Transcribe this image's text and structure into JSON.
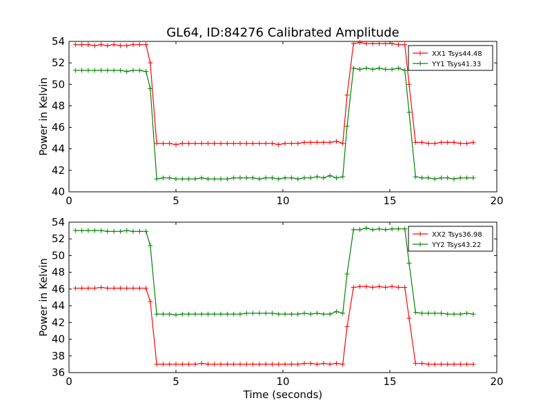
{
  "title": "GL64, ID:84276 Calibrated Amplitude",
  "chart_data": [
    {
      "type": "line",
      "ylabel": "Power in Kelvin",
      "xlabel": "",
      "xlim": [
        0,
        20
      ],
      "ylim": [
        40,
        54
      ],
      "xticks": [
        "0",
        "5",
        "10",
        "15",
        "20"
      ],
      "yticks": [
        "40",
        "42",
        "44",
        "46",
        "48",
        "50",
        "52",
        "54"
      ],
      "legend_position": "top-right",
      "grid": false,
      "x": [
        0.3,
        0.6,
        0.9,
        1.2,
        1.5,
        1.8,
        2.1,
        2.4,
        2.7,
        3.0,
        3.3,
        3.6,
        3.8,
        4.1,
        4.4,
        4.7,
        5.0,
        5.3,
        5.6,
        5.9,
        6.2,
        6.5,
        6.8,
        7.1,
        7.4,
        7.7,
        8.0,
        8.3,
        8.6,
        8.9,
        9.2,
        9.5,
        9.8,
        10.1,
        10.4,
        10.7,
        11.0,
        11.3,
        11.6,
        11.9,
        12.2,
        12.5,
        12.8,
        13.0,
        13.3,
        13.6,
        13.9,
        14.2,
        14.5,
        14.8,
        15.1,
        15.4,
        15.7,
        15.9,
        16.2,
        16.5,
        16.8,
        17.1,
        17.4,
        17.7,
        18.0,
        18.3,
        18.6,
        18.9
      ],
      "series": [
        {
          "name": "XX1 Tsys44.48",
          "color": "#ff0000",
          "values": [
            53.7,
            53.7,
            53.7,
            53.6,
            53.7,
            53.6,
            53.7,
            53.6,
            53.6,
            53.7,
            53.7,
            53.7,
            52.0,
            44.5,
            44.5,
            44.5,
            44.4,
            44.5,
            44.5,
            44.5,
            44.5,
            44.5,
            44.5,
            44.5,
            44.5,
            44.5,
            44.5,
            44.5,
            44.5,
            44.5,
            44.5,
            44.5,
            44.4,
            44.5,
            44.5,
            44.5,
            44.6,
            44.6,
            44.6,
            44.6,
            44.6,
            44.7,
            44.5,
            49.0,
            53.8,
            53.9,
            53.8,
            53.8,
            53.8,
            53.8,
            53.8,
            53.7,
            53.7,
            50.0,
            44.6,
            44.6,
            44.5,
            44.5,
            44.6,
            44.6,
            44.6,
            44.5,
            44.5,
            44.6
          ]
        },
        {
          "name": "YY1 Tsys41.33",
          "color": "#008000",
          "values": [
            51.3,
            51.3,
            51.3,
            51.3,
            51.3,
            51.3,
            51.3,
            51.3,
            51.2,
            51.3,
            51.3,
            51.2,
            49.6,
            41.2,
            41.3,
            41.3,
            41.2,
            41.2,
            41.2,
            41.2,
            41.3,
            41.2,
            41.2,
            41.2,
            41.2,
            41.3,
            41.3,
            41.3,
            41.3,
            41.2,
            41.3,
            41.3,
            41.2,
            41.3,
            41.3,
            41.2,
            41.3,
            41.3,
            41.4,
            41.3,
            41.5,
            41.3,
            41.4,
            46.1,
            51.5,
            51.4,
            51.5,
            51.4,
            51.5,
            51.4,
            51.4,
            51.5,
            51.3,
            47.4,
            41.4,
            41.3,
            41.3,
            41.2,
            41.3,
            41.3,
            41.2,
            41.3,
            41.3,
            41.3
          ]
        }
      ]
    },
    {
      "type": "line",
      "ylabel": "Power in Kelvin",
      "xlabel": "Time (seconds)",
      "xlim": [
        0,
        20
      ],
      "ylim": [
        36,
        54
      ],
      "xticks": [
        "0",
        "5",
        "10",
        "15",
        "20"
      ],
      "yticks": [
        "36",
        "38",
        "40",
        "42",
        "44",
        "46",
        "48",
        "50",
        "52",
        "54"
      ],
      "legend_position": "top-right",
      "grid": false,
      "x": [
        0.3,
        0.6,
        0.9,
        1.2,
        1.5,
        1.8,
        2.1,
        2.4,
        2.7,
        3.0,
        3.3,
        3.6,
        3.8,
        4.1,
        4.4,
        4.7,
        5.0,
        5.3,
        5.6,
        5.9,
        6.2,
        6.5,
        6.8,
        7.1,
        7.4,
        7.7,
        8.0,
        8.3,
        8.6,
        8.9,
        9.2,
        9.5,
        9.8,
        10.1,
        10.4,
        10.7,
        11.0,
        11.3,
        11.6,
        11.9,
        12.2,
        12.5,
        12.8,
        13.0,
        13.3,
        13.6,
        13.9,
        14.2,
        14.5,
        14.8,
        15.1,
        15.4,
        15.7,
        15.9,
        16.2,
        16.5,
        16.8,
        17.1,
        17.4,
        17.7,
        18.0,
        18.3,
        18.6,
        18.9
      ],
      "series": [
        {
          "name": "XX2 Tsys36.98",
          "color": "#ff0000",
          "values": [
            46.1,
            46.1,
            46.1,
            46.1,
            46.2,
            46.1,
            46.1,
            46.1,
            46.1,
            46.1,
            46.1,
            46.1,
            44.5,
            37.0,
            37.0,
            37.0,
            37.0,
            37.0,
            37.0,
            37.0,
            37.1,
            37.0,
            37.0,
            37.0,
            37.0,
            37.0,
            37.0,
            37.0,
            37.0,
            37.0,
            37.0,
            37.0,
            37.0,
            37.0,
            37.0,
            37.0,
            37.1,
            37.1,
            37.0,
            37.1,
            37.0,
            37.1,
            37.0,
            41.5,
            46.2,
            46.3,
            46.3,
            46.2,
            46.3,
            46.2,
            46.3,
            46.2,
            46.2,
            42.5,
            37.1,
            37.1,
            37.0,
            37.0,
            37.0,
            37.0,
            37.0,
            37.0,
            37.0,
            37.0
          ]
        },
        {
          "name": "YY2 Tsys43.22",
          "color": "#008000",
          "values": [
            53.0,
            53.0,
            53.0,
            53.0,
            53.0,
            52.9,
            52.9,
            52.9,
            53.0,
            52.9,
            52.9,
            52.9,
            51.2,
            43.0,
            43.0,
            43.0,
            42.9,
            43.0,
            43.0,
            43.0,
            43.0,
            43.0,
            43.0,
            43.0,
            43.0,
            43.0,
            43.0,
            43.1,
            43.1,
            43.1,
            43.1,
            43.1,
            43.0,
            43.0,
            43.0,
            43.0,
            43.1,
            43.0,
            43.1,
            43.0,
            43.0,
            43.3,
            43.1,
            47.8,
            53.1,
            53.1,
            53.3,
            53.1,
            53.2,
            53.1,
            53.2,
            53.2,
            53.2,
            49.1,
            43.2,
            43.1,
            43.1,
            43.1,
            43.1,
            43.0,
            43.0,
            43.0,
            43.1,
            43.0
          ]
        }
      ]
    }
  ]
}
